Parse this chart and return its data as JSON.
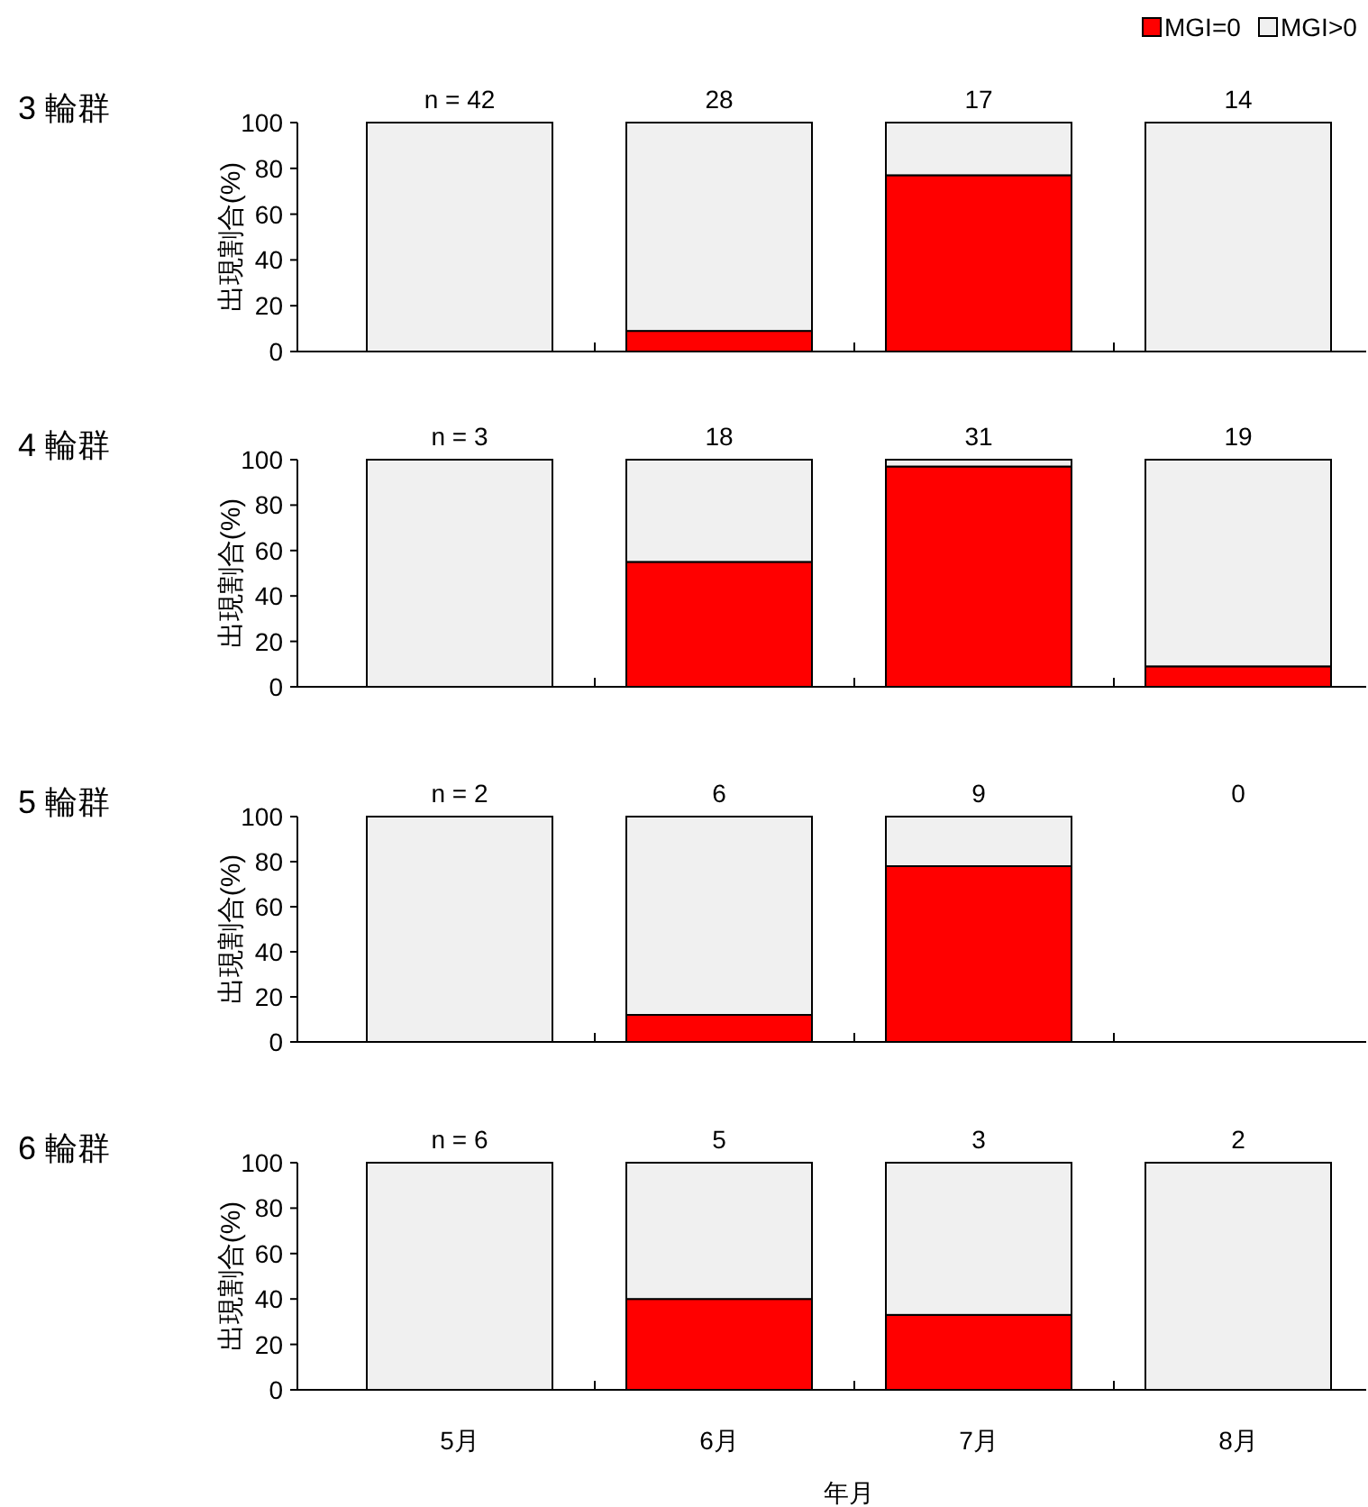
{
  "chart_data": [
    {
      "type": "bar",
      "stacked": true,
      "title": "3 輪群",
      "ylabel": "出現割合(%)",
      "categories": [
        null,
        null,
        null,
        null
      ],
      "series": [
        {
          "name": "MGI=0",
          "color": "#ff0000",
          "values": [
            0,
            9,
            77,
            0
          ]
        },
        {
          "name": "MGI>0",
          "color": "#f0f0f0",
          "values": [
            100,
            91,
            23,
            100
          ]
        }
      ],
      "ylim": [
        0,
        100
      ],
      "yticks": [
        0,
        20,
        40,
        60,
        80,
        100
      ],
      "tick_labels": "y",
      "legend": "top right",
      "annotations": [
        "n = 42",
        "28",
        "17",
        "14"
      ]
    },
    {
      "type": "bar",
      "stacked": true,
      "title": "4 輪群",
      "ylabel": "出現割合(%)",
      "categories": [
        null,
        null,
        null,
        null
      ],
      "series": [
        {
          "color": "#ff0000",
          "values": [
            0,
            55,
            97,
            9
          ]
        },
        {
          "color": "#f0f0f0",
          "values": [
            100,
            45,
            3,
            91
          ]
        }
      ],
      "ylim": [
        0,
        100
      ],
      "yticks": [
        0,
        20,
        40,
        60,
        80,
        100
      ],
      "tick_labels": "y",
      "annotations": [
        "n = 3",
        "18",
        "31",
        "19"
      ]
    },
    {
      "type": "bar",
      "stacked": true,
      "title": "5 輪群",
      "ylabel": "出現割合(%)",
      "categories": [
        null,
        null,
        null,
        null
      ],
      "series": [
        {
          "color": "#ff0000",
          "values": [
            0,
            12,
            78,
            null
          ]
        },
        {
          "color": "#f0f0f0",
          "values": [
            100,
            88,
            22,
            null
          ]
        }
      ],
      "ylim": [
        0,
        100
      ],
      "yticks": [
        0,
        20,
        40,
        60,
        80,
        100
      ],
      "tick_labels": "y",
      "annotations": [
        "n = 2",
        "6",
        "9",
        "0"
      ]
    },
    {
      "type": "bar",
      "stacked": true,
      "title": "6 輪群",
      "ylabel": "出現割合(%)",
      "xlabel": "年月",
      "categories": [
        "5月",
        "6月",
        "7月",
        "8月"
      ],
      "series": [
        {
          "color": "#ff0000",
          "values": [
            0,
            40,
            33,
            0
          ]
        },
        {
          "color": "#f0f0f0",
          "values": [
            100,
            60,
            67,
            100
          ]
        }
      ],
      "ylim": [
        0,
        100
      ],
      "yticks": [
        0,
        20,
        40,
        60,
        80,
        100
      ],
      "annotations": [
        "n = 6",
        "5",
        "3",
        "2"
      ]
    }
  ]
}
